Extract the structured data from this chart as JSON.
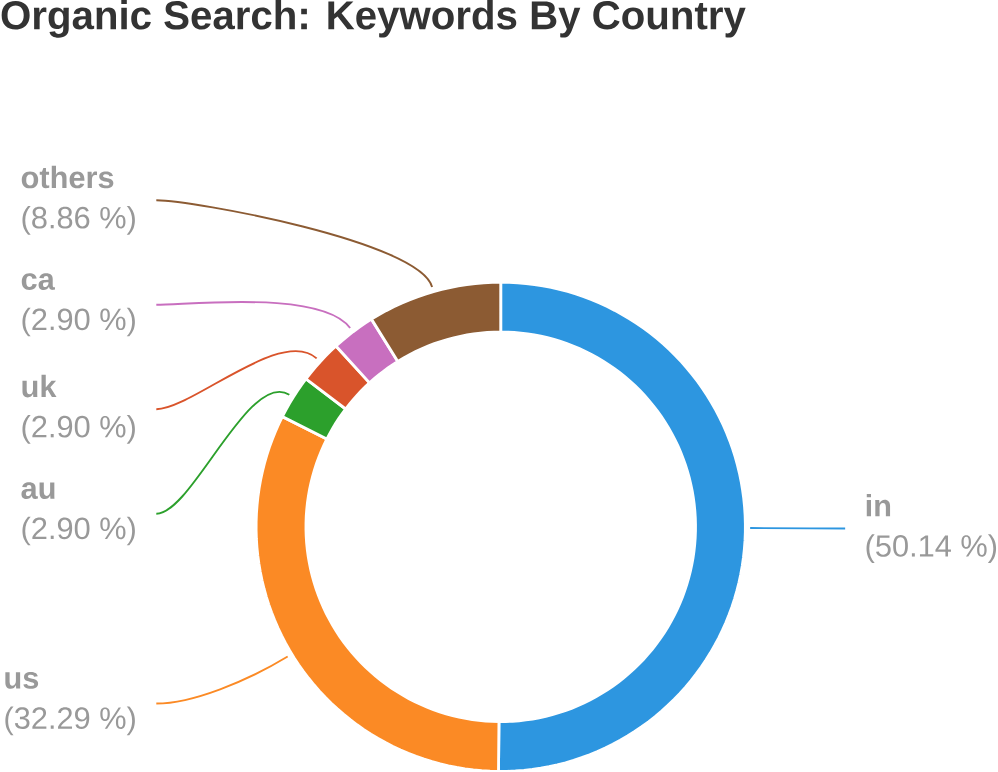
{
  "chart_data": {
    "type": "donut",
    "title": "Organic Search: Keywords By Country",
    "categories": [
      "in",
      "us",
      "au",
      "uk",
      "ca",
      "others"
    ],
    "values": [
      50.14,
      32.29,
      2.9,
      2.9,
      2.9,
      8.86
    ],
    "colors": [
      "#2d96e0",
      "#fb8a25",
      "#2ca02c",
      "#d9542b",
      "#c86fbf",
      "#8c5b33"
    ],
    "value_labels": [
      "(50.14 %)",
      "(32.29 %)",
      "(2.90 %)",
      "(2.90 %)",
      "(2.90 %)",
      "(8.86 %)"
    ]
  }
}
